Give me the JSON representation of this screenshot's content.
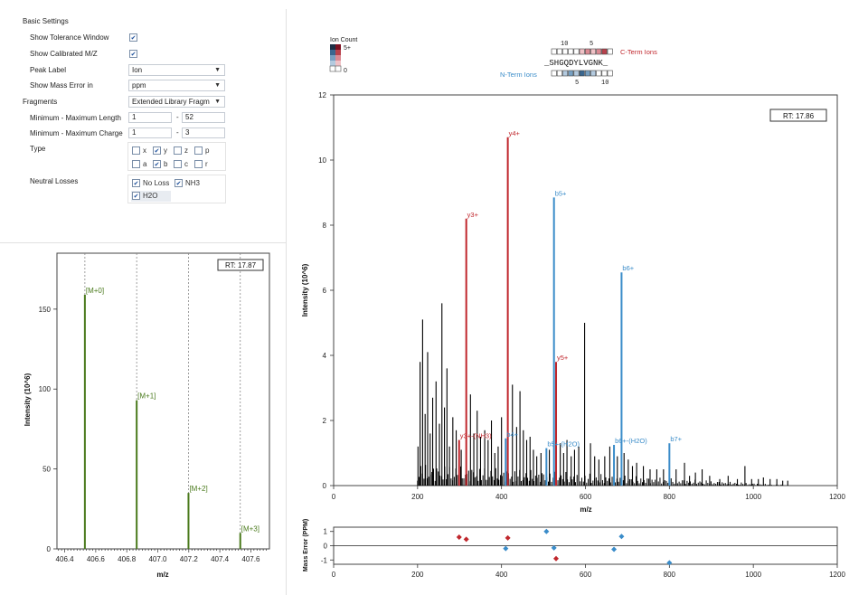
{
  "settings": {
    "basic_title": "Basic Settings",
    "tolerance_label": "Show Tolerance Window",
    "tolerance_checked": true,
    "calibrated_label": "Show Calibrated M/Z",
    "calibrated_checked": true,
    "peak_label_label": "Peak Label",
    "peak_label_value": "Ion",
    "mass_error_label": "Show Mass Error in",
    "mass_error_value": "ppm",
    "fragments_label": "Fragments",
    "fragments_value": "Extended Library Fragm",
    "length_label": "Minimum - Maximum Length",
    "length_min": "1",
    "length_max": "52",
    "charge_label": "Minimum - Maximum Charge",
    "charge_min": "1",
    "charge_max": "3",
    "range_sep": "-",
    "type_label": "Type",
    "types": [
      {
        "label": "x",
        "checked": false
      },
      {
        "label": "y",
        "checked": true
      },
      {
        "label": "z",
        "checked": false
      },
      {
        "label": "p",
        "checked": false
      },
      {
        "label": "a",
        "checked": false
      },
      {
        "label": "b",
        "checked": true
      },
      {
        "label": "c",
        "checked": false
      },
      {
        "label": "r",
        "checked": false
      }
    ],
    "neutral_label": "Neutral Losses",
    "neutral": [
      {
        "label": "No Loss",
        "checked": true
      },
      {
        "label": "NH3",
        "checked": true
      },
      {
        "label": "H2O",
        "checked": true
      }
    ]
  },
  "isotope_plot": {
    "rt_label": "RT: 17.87",
    "ylabel": "Intensity (10^6)",
    "xlabel": "m/z"
  },
  "spectrum": {
    "ion_count_title": "Ion Count",
    "ion_count_top": "5+",
    "ion_count_bottom": "0",
    "cterm_label": "C-Term Ions",
    "nterm_label": "N-Term Ions",
    "sequence": "_SHGQDYLVGNK_",
    "cterm_ticks": [
      "10",
      "5"
    ],
    "nterm_ticks": [
      "5",
      "10"
    ],
    "rt_label": "RT: 17.86",
    "ylabel": "Intensity (10^6)",
    "xlabel": "m/z",
    "error_ylabel": "Mass Error (PPM)"
  },
  "colors": {
    "y_ion": "#c0272d",
    "b_ion": "#3a8cc9",
    "isotope": "#4a7a1c",
    "peak": "#000000"
  },
  "chart_data": [
    {
      "type": "bar",
      "title": "",
      "xlabel": "m/z",
      "ylabel": "Intensity (10^6)",
      "xlim": [
        406.35,
        407.72
      ],
      "ylim": [
        0,
        185
      ],
      "x_ticks": [
        "406.4",
        "406.6",
        "406.8",
        "407.0",
        "407.2",
        "407.4",
        "407.6"
      ],
      "y_ticks": [
        "0",
        "50",
        "100",
        "150"
      ],
      "peaks": [
        {
          "x": 406.53,
          "y": 159,
          "label": "[M+0]"
        },
        {
          "x": 406.864,
          "y": 93,
          "label": "[M+1]"
        },
        {
          "x": 407.198,
          "y": 35,
          "label": "[M+2]"
        },
        {
          "x": 407.532,
          "y": 10,
          "label": "[M+3]"
        }
      ]
    },
    {
      "type": "bar",
      "title": "",
      "xlabel": "m/z",
      "ylabel": "Intensity (10^6)",
      "xlim": [
        0,
        1200
      ],
      "ylim": [
        0,
        12
      ],
      "x_ticks": [
        "0",
        "200",
        "400",
        "600",
        "800",
        "1000",
        "1200"
      ],
      "y_ticks": [
        "0",
        "2",
        "4",
        "6",
        "8",
        "10",
        "12"
      ],
      "annotated_peaks": [
        {
          "label": "y3+",
          "x": 316,
          "y": 8.2,
          "series": "y"
        },
        {
          "label": "y4+",
          "x": 415,
          "y": 10.7,
          "series": "y"
        },
        {
          "label": "y5+",
          "x": 530,
          "y": 3.8,
          "series": "y"
        },
        {
          "label": "y3+-(NH3)",
          "x": 299,
          "y": 1.4,
          "series": "y"
        },
        {
          "label": "b4+",
          "x": 410,
          "y": 1.45,
          "series": "b"
        },
        {
          "label": "b5+",
          "x": 525,
          "y": 8.85,
          "series": "b"
        },
        {
          "label": "b6+",
          "x": 686,
          "y": 6.55,
          "series": "b"
        },
        {
          "label": "b5+-(H2O)",
          "x": 507,
          "y": 1.15,
          "series": "b"
        },
        {
          "label": "b6+-(H2O)",
          "x": 668,
          "y": 1.25,
          "series": "b"
        },
        {
          "label": "b7+",
          "x": 800,
          "y": 1.3,
          "series": "b"
        }
      ],
      "other_peaks": [
        [
          201,
          1.2
        ],
        [
          206,
          3.8
        ],
        [
          212,
          5.1
        ],
        [
          218,
          2.2
        ],
        [
          224,
          4.1
        ],
        [
          230,
          1.6
        ],
        [
          236,
          2.7
        ],
        [
          244,
          3.2
        ],
        [
          252,
          1.9
        ],
        [
          258,
          5.6
        ],
        [
          264,
          2.4
        ],
        [
          270,
          3.6
        ],
        [
          276,
          1.2
        ],
        [
          284,
          2.1
        ],
        [
          292,
          1.7
        ],
        [
          304,
          1.1
        ],
        [
          326,
          2.8
        ],
        [
          334,
          1.6
        ],
        [
          342,
          2.3
        ],
        [
          350,
          1.5
        ],
        [
          360,
          1.7
        ],
        [
          368,
          1.4
        ],
        [
          376,
          2.0
        ],
        [
          384,
          1.0
        ],
        [
          392,
          1.2
        ],
        [
          400,
          2.1
        ],
        [
          426,
          3.1
        ],
        [
          436,
          1.8
        ],
        [
          444,
          2.9
        ],
        [
          452,
          1.7
        ],
        [
          460,
          1.4
        ],
        [
          468,
          1.5
        ],
        [
          476,
          1.1
        ],
        [
          484,
          0.9
        ],
        [
          494,
          1.0
        ],
        [
          514,
          1.1
        ],
        [
          540,
          1.3
        ],
        [
          548,
          1.0
        ],
        [
          556,
          1.4
        ],
        [
          566,
          0.9
        ],
        [
          574,
          1.1
        ],
        [
          584,
          1.2
        ],
        [
          598,
          5.0
        ],
        [
          612,
          1.3
        ],
        [
          622,
          0.9
        ],
        [
          632,
          0.8
        ],
        [
          646,
          0.9
        ],
        [
          658,
          1.2
        ],
        [
          676,
          0.9
        ],
        [
          692,
          1.0
        ],
        [
          702,
          0.8
        ],
        [
          712,
          0.6
        ],
        [
          722,
          0.7
        ],
        [
          738,
          0.6
        ],
        [
          754,
          0.5
        ],
        [
          770,
          0.5
        ],
        [
          786,
          0.5
        ],
        [
          816,
          0.5
        ],
        [
          836,
          0.7
        ],
        [
          848,
          0.3
        ],
        [
          862,
          0.4
        ],
        [
          878,
          0.5
        ],
        [
          896,
          0.3
        ],
        [
          920,
          0.2
        ],
        [
          940,
          0.3
        ],
        [
          962,
          0.2
        ],
        [
          980,
          0.6
        ],
        [
          996,
          0.2
        ],
        [
          1012,
          0.2
        ],
        [
          1024,
          0.25
        ],
        [
          1040,
          0.2
        ],
        [
          1056,
          0.2
        ],
        [
          1070,
          0.15
        ],
        [
          1082,
          0.15
        ]
      ]
    },
    {
      "type": "scatter",
      "title": "",
      "xlabel": "",
      "ylabel": "Mass Error (PPM)",
      "xlim": [
        0,
        1200
      ],
      "ylim": [
        -1.3,
        1.3
      ],
      "x_ticks": [
        "0",
        "200",
        "400",
        "600",
        "800",
        "1000",
        "1200"
      ],
      "y_ticks": [
        "-1",
        "0",
        "1"
      ],
      "series": [
        {
          "name": "y",
          "points": [
            [
              299,
              0.6
            ],
            [
              316,
              0.45
            ],
            [
              415,
              0.55
            ],
            [
              530,
              -0.9
            ]
          ]
        },
        {
          "name": "b",
          "points": [
            [
              410,
              -0.2
            ],
            [
              507,
              1.0
            ],
            [
              525,
              -0.15
            ],
            [
              668,
              -0.25
            ],
            [
              686,
              0.65
            ],
            [
              800,
              -1.2
            ]
          ]
        }
      ]
    }
  ]
}
